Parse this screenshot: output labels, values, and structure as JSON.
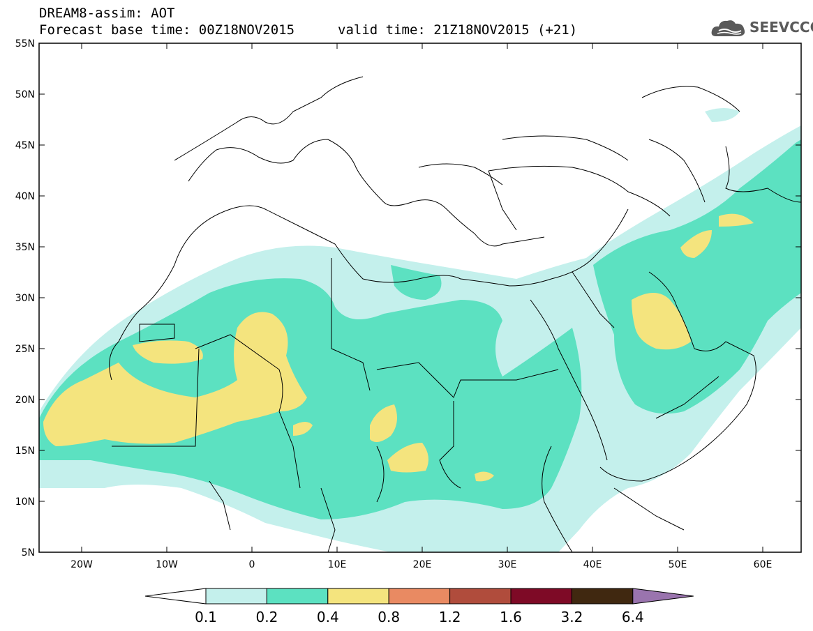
{
  "header": {
    "model": "DREAM8-assim: AOT",
    "base_time": "Forecast base time: 00Z18NOV2015",
    "valid_time": "valid time: 21Z18NOV2015 (+21)"
  },
  "logo": {
    "text": "SEEVCCC",
    "icon": "cloud-icon"
  },
  "map": {
    "lat_labels": [
      "55N",
      "50N",
      "45N",
      "40N",
      "35N",
      "30N",
      "25N",
      "20N",
      "15N",
      "10N",
      "5N"
    ],
    "lon_labels": [
      "20W",
      "10W",
      "0",
      "10E",
      "20E",
      "30E",
      "40E",
      "50E",
      "60E"
    ],
    "region": "North Africa, Mediterranean and Middle East"
  },
  "legend": {
    "labels": [
      "0.1",
      "0.2",
      "0.4",
      "0.8",
      "1.2",
      "1.6",
      "3.2",
      "6.4"
    ],
    "colors": [
      "#ffffff",
      "#c4f0ec",
      "#5ce1c1",
      "#f4e47e",
      "#e98a62",
      "#b04c3c",
      "#7e0a26",
      "#402810",
      "#9a74ae"
    ]
  }
}
